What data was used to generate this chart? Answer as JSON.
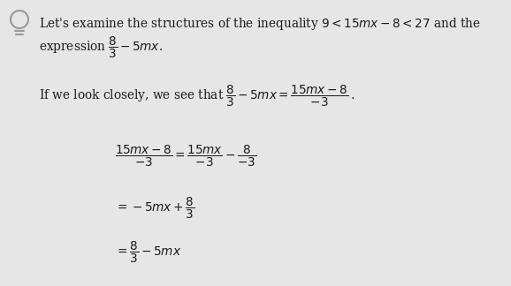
{
  "bg_color": "#e6e6e6",
  "text_color": "#1a1a1a",
  "fig_width": 5.78,
  "fig_height": 3.24,
  "icon_color": "#999999",
  "intro_line1": "Let's examine the structures of the inequality $9 < 15mx - 8 < 27$ and the",
  "intro_line2": "expression $\\dfrac{8}{3} - 5mx$.",
  "closely_line": "If we look closely, we see that $\\dfrac{8}{3} - 5mx = \\dfrac{15mx - 8}{-3}\\,.$",
  "eq1": "$\\dfrac{15mx - 8}{-3} = \\dfrac{15mx}{-3} - \\dfrac{8}{-3}$",
  "eq2": "$= -5mx + \\dfrac{8}{3}$",
  "eq3": "$= \\dfrac{8}{3} - 5mx$"
}
